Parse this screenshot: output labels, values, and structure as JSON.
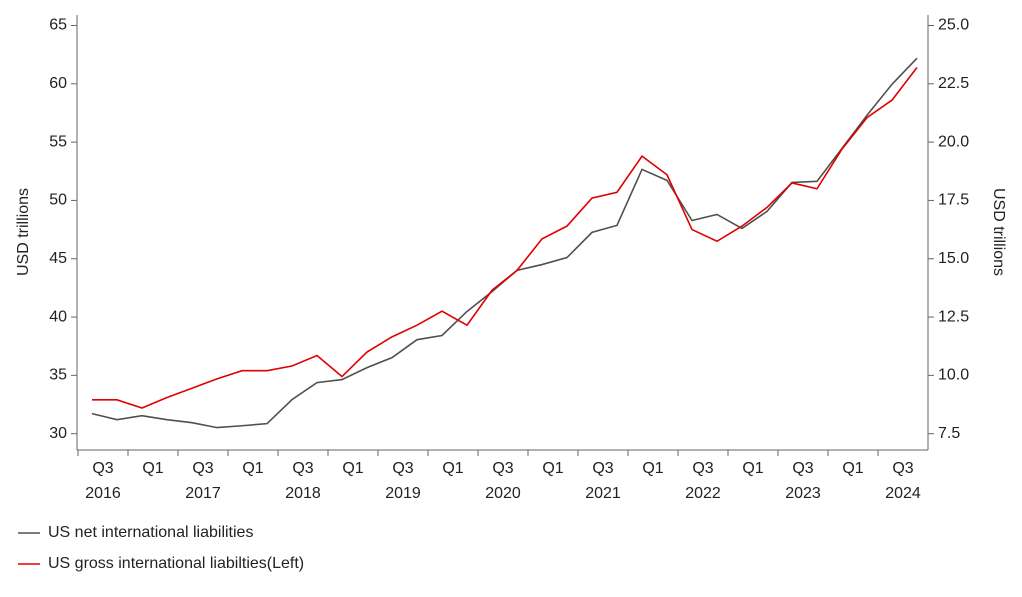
{
  "chart_data": {
    "type": "line",
    "categories": [
      "Q3",
      null,
      "Q1",
      null,
      "Q3",
      null,
      "Q1",
      null,
      "Q3",
      null,
      "Q1",
      null,
      "Q3",
      null,
      "Q1",
      null,
      "Q3",
      null,
      "Q1",
      null,
      "Q3",
      null,
      "Q1",
      null,
      "Q3",
      null,
      "Q1",
      null,
      "Q3",
      null,
      "Q1",
      null,
      "Q3",
      null
    ],
    "years": [
      "2016",
      null,
      null,
      null,
      "2017",
      null,
      null,
      null,
      "2018",
      null,
      null,
      null,
      "2019",
      null,
      null,
      null,
      "2020",
      null,
      null,
      null,
      "2021",
      null,
      null,
      null,
      "2022",
      null,
      null,
      null,
      "2023",
      null,
      null,
      null,
      "2024",
      null
    ],
    "series": [
      {
        "name": "US net international liabilities",
        "color": "#505050",
        "axis": "y2",
        "values": [
          8.36,
          8.1,
          8.27,
          8.1,
          7.97,
          7.76,
          7.84,
          7.93,
          8.96,
          9.69,
          9.82,
          10.33,
          10.76,
          11.53,
          11.71,
          12.74,
          13.59,
          14.5,
          14.75,
          15.05,
          16.13,
          16.43,
          18.83,
          18.36,
          16.64,
          16.9,
          16.3,
          17.03,
          18.27,
          18.32,
          19.73,
          21.15,
          22.48,
          23.6
        ]
      },
      {
        "name": "US gross international liabilties(Left)",
        "color": "#e00000",
        "axis": "y",
        "values": [
          32.9,
          32.9,
          32.2,
          33.1,
          33.9,
          34.7,
          35.4,
          35.4,
          35.8,
          36.7,
          34.9,
          37.0,
          38.3,
          39.3,
          40.5,
          39.3,
          42.3,
          44.0,
          46.7,
          47.8,
          50.2,
          50.7,
          53.8,
          52.2,
          47.5,
          46.5,
          47.8,
          49.4,
          51.5,
          51.0,
          54.4,
          57.1,
          58.6,
          61.4
        ]
      }
    ],
    "ylabel": "USD trillions",
    "y2label": "USD trillions",
    "ylim": [
      28.6,
      65.9
    ],
    "yticks": [
      30,
      35,
      40,
      45,
      50,
      55,
      60,
      65
    ],
    "y2lim": [
      6.8,
      25.45
    ],
    "y2ticks": [
      {
        "value": 7.5,
        "label": "7.5"
      },
      {
        "value": 10,
        "label": "10.0"
      },
      {
        "value": 12.5,
        "label": "12.5"
      },
      {
        "value": 15,
        "label": "15.0"
      },
      {
        "value": 17.5,
        "label": "17.5"
      },
      {
        "value": 20,
        "label": "20.0"
      },
      {
        "value": 22.5,
        "label": "22.5"
      },
      {
        "value": 25,
        "label": "25.0"
      }
    ],
    "grid": false
  }
}
